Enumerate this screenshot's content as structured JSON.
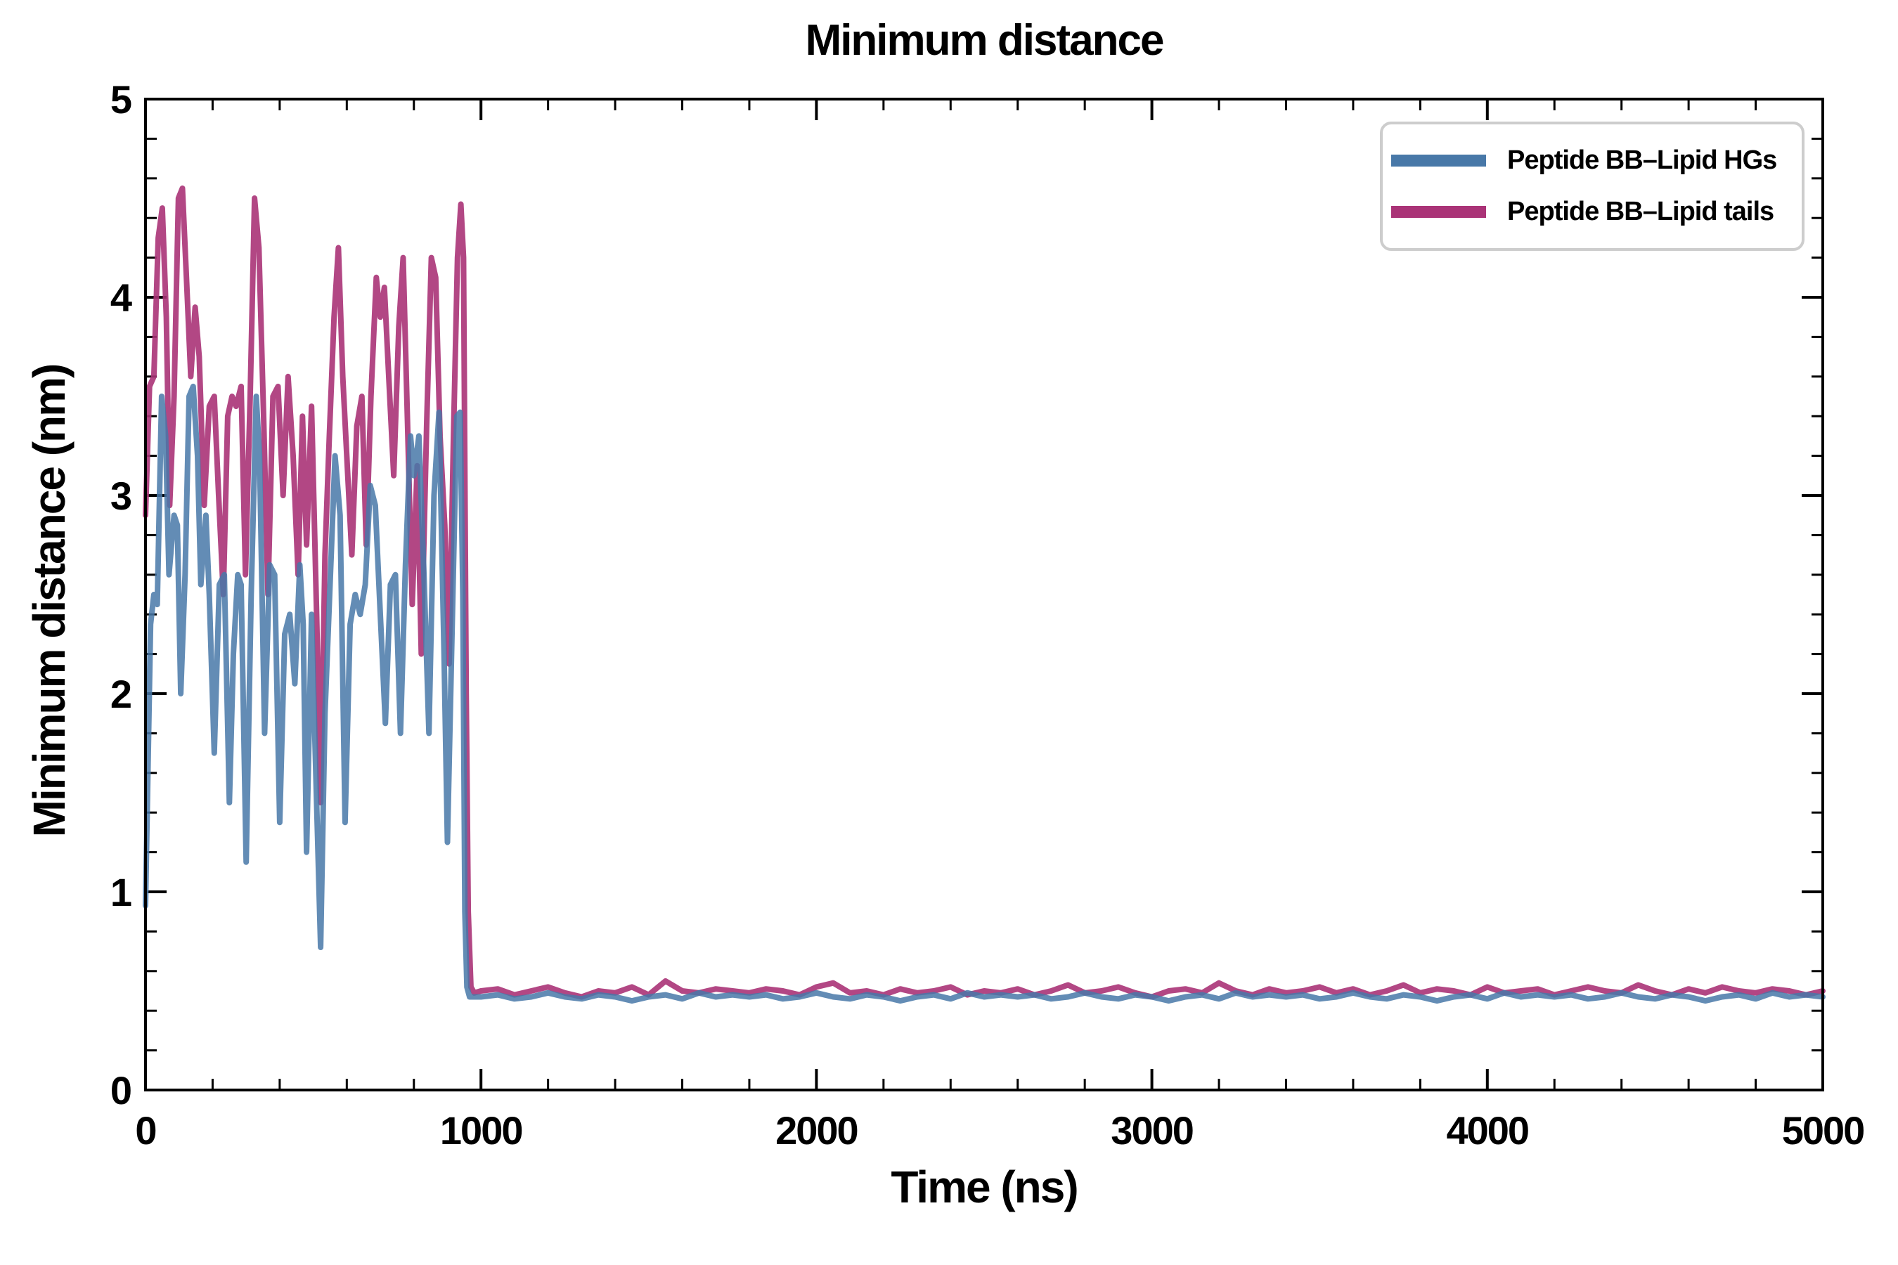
{
  "figure": {
    "title": "Minimum distance",
    "xlabel": "Time (ns)",
    "ylabel": "Minimum distance (nm)"
  },
  "legend": {
    "position": "upper right",
    "entries": [
      {
        "label": "Peptide BB–Lipid HGs",
        "color": "#4878a8"
      },
      {
        "label": "Peptide BB–Lipid tails",
        "color": "#aa3377"
      }
    ]
  },
  "chart_data": {
    "type": "line",
    "title": "Minimum distance",
    "xlabel": "Time (ns)",
    "ylabel": "Minimum distance (nm)",
    "xlim": [
      0,
      5000
    ],
    "ylim": [
      0,
      5
    ],
    "xticks": [
      0,
      1000,
      2000,
      3000,
      4000,
      5000
    ],
    "yticks": [
      0,
      1,
      2,
      3,
      4,
      5
    ],
    "x_minor_step": 200,
    "y_minor_step": 0.2,
    "grid": false,
    "legend_position": "upper right",
    "series": [
      {
        "name": "Peptide BB–Lipid HGs",
        "color": "#4878a8",
        "alpha": 0.85,
        "line_width": 8,
        "x": [
          0,
          15,
          25,
          35,
          48,
          60,
          70,
          85,
          95,
          105,
          118,
          130,
          142,
          155,
          165,
          180,
          190,
          205,
          220,
          235,
          250,
          262,
          275,
          285,
          300,
          315,
          330,
          340,
          355,
          370,
          385,
          400,
          415,
          430,
          445,
          460,
          470,
          480,
          495,
          510,
          522,
          535,
          550,
          565,
          580,
          595,
          610,
          625,
          640,
          655,
          670,
          685,
          700,
          715,
          730,
          745,
          760,
          775,
          790,
          800,
          815,
          830,
          845,
          860,
          875,
          890,
          900,
          915,
          928,
          938,
          946,
          952,
          958,
          966,
          1000,
          1050,
          1100,
          1150,
          1200,
          1250,
          1300,
          1350,
          1400,
          1450,
          1500,
          1550,
          1600,
          1650,
          1700,
          1750,
          1800,
          1850,
          1900,
          1950,
          2000,
          2050,
          2100,
          2150,
          2200,
          2250,
          2300,
          2350,
          2400,
          2450,
          2500,
          2550,
          2600,
          2650,
          2700,
          2750,
          2800,
          2850,
          2900,
          2950,
          3000,
          3050,
          3100,
          3150,
          3200,
          3250,
          3300,
          3350,
          3400,
          3450,
          3500,
          3550,
          3600,
          3650,
          3700,
          3750,
          3800,
          3850,
          3900,
          3950,
          4000,
          4050,
          4100,
          4150,
          4200,
          4250,
          4300,
          4350,
          4400,
          4450,
          4500,
          4550,
          4600,
          4650,
          4700,
          4750,
          4800,
          4850,
          4900,
          4950,
          5000
        ],
        "values": [
          0.93,
          2.35,
          2.5,
          2.45,
          3.5,
          3.3,
          2.6,
          2.9,
          2.85,
          2.0,
          2.6,
          3.5,
          3.55,
          3.2,
          2.55,
          2.9,
          2.5,
          1.7,
          2.55,
          2.6,
          1.45,
          2.2,
          2.6,
          2.55,
          1.15,
          2.5,
          3.5,
          3.2,
          1.8,
          2.65,
          2.6,
          1.35,
          2.3,
          2.4,
          2.05,
          2.65,
          2.35,
          1.2,
          2.4,
          1.45,
          0.72,
          1.9,
          2.55,
          3.2,
          2.9,
          1.35,
          2.35,
          2.5,
          2.4,
          2.55,
          3.05,
          2.95,
          2.4,
          1.85,
          2.55,
          2.6,
          1.8,
          2.65,
          3.3,
          3.1,
          3.3,
          2.6,
          1.8,
          3.0,
          3.42,
          2.2,
          1.25,
          2.4,
          3.4,
          3.42,
          2.5,
          0.9,
          0.52,
          0.47,
          0.47,
          0.48,
          0.46,
          0.47,
          0.49,
          0.47,
          0.46,
          0.48,
          0.47,
          0.45,
          0.47,
          0.48,
          0.46,
          0.49,
          0.47,
          0.48,
          0.47,
          0.48,
          0.46,
          0.47,
          0.49,
          0.47,
          0.46,
          0.48,
          0.47,
          0.45,
          0.47,
          0.48,
          0.46,
          0.49,
          0.47,
          0.48,
          0.47,
          0.48,
          0.46,
          0.47,
          0.49,
          0.47,
          0.46,
          0.48,
          0.47,
          0.45,
          0.47,
          0.48,
          0.46,
          0.49,
          0.47,
          0.48,
          0.47,
          0.48,
          0.46,
          0.47,
          0.49,
          0.47,
          0.46,
          0.48,
          0.47,
          0.45,
          0.47,
          0.48,
          0.46,
          0.49,
          0.47,
          0.48,
          0.47,
          0.48,
          0.46,
          0.47,
          0.49,
          0.47,
          0.46,
          0.48,
          0.47,
          0.45,
          0.47,
          0.48,
          0.46,
          0.49,
          0.47,
          0.48,
          0.47
        ]
      },
      {
        "name": "Peptide BB–Lipid tails",
        "color": "#aa3377",
        "alpha": 0.9,
        "line_width": 8,
        "x": [
          0,
          12,
          25,
          38,
          50,
          62,
          72,
          85,
          98,
          110,
          122,
          135,
          148,
          160,
          175,
          190,
          205,
          218,
          232,
          245,
          258,
          270,
          285,
          298,
          312,
          325,
          338,
          352,
          365,
          380,
          395,
          410,
          425,
          440,
          455,
          468,
          480,
          495,
          510,
          522,
          535,
          548,
          562,
          575,
          588,
          600,
          615,
          630,
          645,
          658,
          672,
          688,
          700,
          712,
          725,
          740,
          755,
          768,
          782,
          795,
          810,
          822,
          838,
          852,
          865,
          878,
          892,
          905,
          918,
          930,
          940,
          948,
          956,
          962,
          970,
          980,
          1000,
          1050,
          1100,
          1150,
          1200,
          1250,
          1300,
          1350,
          1400,
          1450,
          1500,
          1550,
          1600,
          1650,
          1700,
          1750,
          1800,
          1850,
          1900,
          1950,
          2000,
          2050,
          2100,
          2150,
          2200,
          2250,
          2300,
          2350,
          2400,
          2450,
          2500,
          2550,
          2600,
          2650,
          2700,
          2750,
          2800,
          2850,
          2900,
          2950,
          3000,
          3050,
          3100,
          3150,
          3200,
          3250,
          3300,
          3350,
          3400,
          3450,
          3500,
          3550,
          3600,
          3650,
          3700,
          3750,
          3800,
          3850,
          3900,
          3950,
          4000,
          4050,
          4100,
          4150,
          4200,
          4250,
          4300,
          4350,
          4400,
          4450,
          4500,
          4550,
          4600,
          4650,
          4700,
          4750,
          4800,
          4850,
          4900,
          4950,
          5000
        ],
        "values": [
          2.9,
          3.55,
          3.6,
          4.3,
          4.45,
          3.9,
          2.95,
          3.5,
          4.5,
          4.55,
          4.1,
          3.6,
          3.95,
          3.7,
          2.95,
          3.45,
          3.5,
          3.0,
          2.5,
          3.4,
          3.5,
          3.45,
          3.55,
          2.6,
          3.5,
          4.5,
          4.25,
          3.4,
          2.5,
          3.5,
          3.55,
          3.0,
          3.6,
          3.2,
          2.6,
          3.4,
          2.75,
          3.45,
          2.4,
          1.45,
          2.7,
          3.3,
          3.9,
          4.25,
          3.6,
          3.2,
          2.7,
          3.35,
          3.5,
          2.75,
          3.5,
          4.1,
          3.9,
          4.05,
          3.6,
          3.1,
          3.85,
          4.2,
          3.3,
          2.45,
          3.15,
          2.2,
          3.35,
          4.2,
          4.1,
          3.3,
          2.85,
          2.15,
          3.3,
          4.2,
          4.47,
          4.2,
          2.0,
          0.9,
          0.52,
          0.49,
          0.5,
          0.51,
          0.48,
          0.5,
          0.52,
          0.49,
          0.47,
          0.5,
          0.49,
          0.52,
          0.48,
          0.55,
          0.5,
          0.49,
          0.51,
          0.5,
          0.49,
          0.51,
          0.5,
          0.48,
          0.52,
          0.54,
          0.49,
          0.5,
          0.48,
          0.51,
          0.49,
          0.5,
          0.52,
          0.48,
          0.5,
          0.49,
          0.51,
          0.48,
          0.5,
          0.53,
          0.49,
          0.5,
          0.52,
          0.49,
          0.47,
          0.5,
          0.51,
          0.49,
          0.54,
          0.5,
          0.48,
          0.51,
          0.49,
          0.5,
          0.52,
          0.49,
          0.51,
          0.48,
          0.5,
          0.53,
          0.49,
          0.51,
          0.5,
          0.48,
          0.52,
          0.49,
          0.5,
          0.51,
          0.48,
          0.5,
          0.52,
          0.5,
          0.49,
          0.53,
          0.5,
          0.48,
          0.51,
          0.49,
          0.52,
          0.5,
          0.49,
          0.51,
          0.5,
          0.48,
          0.5
        ]
      }
    ]
  }
}
